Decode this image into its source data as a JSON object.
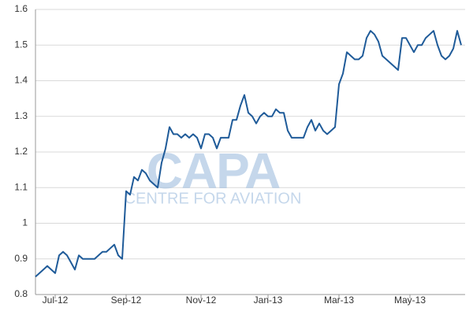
{
  "chart_data": {
    "type": "line",
    "watermark": {
      "title": "CAPA",
      "subtitle": "CENTRE FOR AVIATION"
    },
    "categories": [
      null,
      null,
      null,
      null,
      null,
      "Jul-12",
      null,
      null,
      null,
      null,
      null,
      null,
      null,
      null,
      null,
      null,
      null,
      null,
      null,
      null,
      null,
      null,
      null,
      "Sep-12",
      null,
      null,
      null,
      null,
      null,
      null,
      null,
      null,
      null,
      null,
      null,
      null,
      null,
      null,
      null,
      null,
      null,
      null,
      "Nov-12",
      null,
      null,
      null,
      null,
      null,
      null,
      null,
      null,
      null,
      null,
      null,
      null,
      null,
      null,
      null,
      null,
      "Jan-13",
      null,
      null,
      null,
      null,
      null,
      null,
      null,
      null,
      null,
      null,
      null,
      null,
      null,
      null,
      null,
      null,
      null,
      "Mar-13",
      null,
      null,
      null,
      null,
      null,
      null,
      null,
      null,
      null,
      null,
      null,
      null,
      null,
      null,
      null,
      null,
      null,
      "May-13",
      null,
      null,
      null,
      null,
      null,
      null,
      null,
      null,
      null,
      null,
      null,
      null,
      null
    ],
    "series": [
      {
        "color": "#1f5b99",
        "values": [
          0.85,
          0.86,
          0.87,
          0.88,
          0.87,
          0.86,
          0.91,
          0.92,
          0.91,
          0.89,
          0.87,
          0.91,
          0.9,
          0.9,
          0.9,
          0.9,
          0.91,
          0.92,
          0.92,
          0.93,
          0.94,
          0.91,
          0.9,
          1.09,
          1.08,
          1.13,
          1.12,
          1.15,
          1.14,
          1.12,
          1.11,
          1.1,
          1.17,
          1.21,
          1.27,
          1.25,
          1.25,
          1.24,
          1.25,
          1.24,
          1.25,
          1.24,
          1.21,
          1.25,
          1.25,
          1.24,
          1.21,
          1.24,
          1.24,
          1.24,
          1.29,
          1.29,
          1.33,
          1.36,
          1.31,
          1.3,
          1.28,
          1.3,
          1.31,
          1.3,
          1.3,
          1.32,
          1.31,
          1.31,
          1.26,
          1.24,
          1.24,
          1.24,
          1.24,
          1.27,
          1.29,
          1.26,
          1.28,
          1.26,
          1.25,
          1.26,
          1.27,
          1.39,
          1.42,
          1.48,
          1.47,
          1.46,
          1.46,
          1.47,
          1.52,
          1.54,
          1.53,
          1.51,
          1.47,
          1.46,
          1.45,
          1.44,
          1.43,
          1.52,
          1.52,
          1.5,
          1.48,
          1.5,
          1.5,
          1.52,
          1.53,
          1.54,
          1.5,
          1.47,
          1.46,
          1.47,
          1.49,
          1.54,
          1.5
        ]
      }
    ],
    "ylim": [
      0.8,
      1.6
    ],
    "yticks": [
      0.8,
      0.9,
      1,
      1.1,
      1.2,
      1.3,
      1.4,
      1.5,
      1.6
    ],
    "grid": true
  }
}
